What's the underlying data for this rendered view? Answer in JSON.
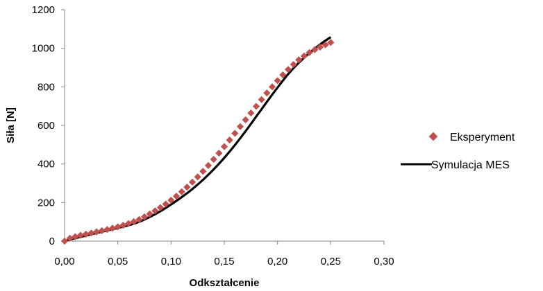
{
  "chart_data": {
    "type": "scatter",
    "xlabel": "Odkształcenie",
    "ylabel": "Siła [N]",
    "xlim": [
      0,
      0.3
    ],
    "ylim": [
      0,
      1200
    ],
    "x_ticks": [
      "0,00",
      "0,05",
      "0,10",
      "0,15",
      "0,20",
      "0,25",
      "0,30"
    ],
    "y_ticks": [
      "0",
      "200",
      "400",
      "600",
      "800",
      "1000",
      "1200"
    ],
    "grid": false,
    "legend_position": "right",
    "series": [
      {
        "name": "Eksperyment",
        "kind": "scatter",
        "marker": "diamond",
        "color": "#c0504d",
        "x": [
          0.0,
          0.005,
          0.01,
          0.015,
          0.02,
          0.025,
          0.03,
          0.035,
          0.04,
          0.045,
          0.05,
          0.055,
          0.06,
          0.065,
          0.07,
          0.075,
          0.08,
          0.085,
          0.09,
          0.095,
          0.1,
          0.105,
          0.11,
          0.115,
          0.12,
          0.125,
          0.13,
          0.135,
          0.14,
          0.145,
          0.15,
          0.155,
          0.16,
          0.165,
          0.17,
          0.175,
          0.18,
          0.185,
          0.19,
          0.195,
          0.2,
          0.205,
          0.21,
          0.215,
          0.22,
          0.225,
          0.23,
          0.235,
          0.24,
          0.245,
          0.25
        ],
        "y": [
          0,
          15,
          23,
          30,
          36,
          42,
          48,
          54,
          60,
          67,
          74,
          82,
          91,
          101,
          112,
          126,
          141,
          157,
          174,
          192,
          212,
          233,
          256,
          280,
          306,
          333,
          362,
          392,
          424,
          456,
          490,
          524,
          559,
          594,
          629,
          664,
          699,
          734,
          768,
          800,
          832,
          862,
          890,
          916,
          940,
          960,
          978,
          993,
          1006,
          1018,
          1030
        ]
      },
      {
        "name": "Symulacja MES",
        "kind": "line",
        "color": "#000000",
        "x": [
          0.0,
          0.01,
          0.02,
          0.03,
          0.04,
          0.05,
          0.06,
          0.07,
          0.08,
          0.09,
          0.1,
          0.11,
          0.12,
          0.13,
          0.14,
          0.15,
          0.16,
          0.17,
          0.18,
          0.19,
          0.2,
          0.21,
          0.22,
          0.23,
          0.24,
          0.25
        ],
        "y": [
          0,
          15,
          28,
          42,
          55,
          68,
          82,
          100,
          125,
          155,
          190,
          228,
          270,
          318,
          372,
          432,
          498,
          570,
          646,
          722,
          796,
          866,
          925,
          975,
          1020,
          1058
        ]
      }
    ]
  }
}
